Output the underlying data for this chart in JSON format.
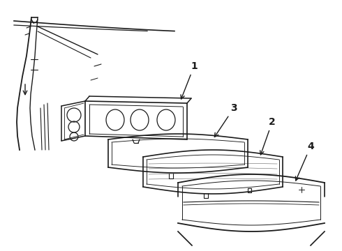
{
  "background_color": "#ffffff",
  "line_color": "#1a1a1a",
  "line_width": 1.0,
  "label_1": "1",
  "label_2": "2",
  "label_3": "3",
  "label_4": "4",
  "label_fontsize": 10
}
